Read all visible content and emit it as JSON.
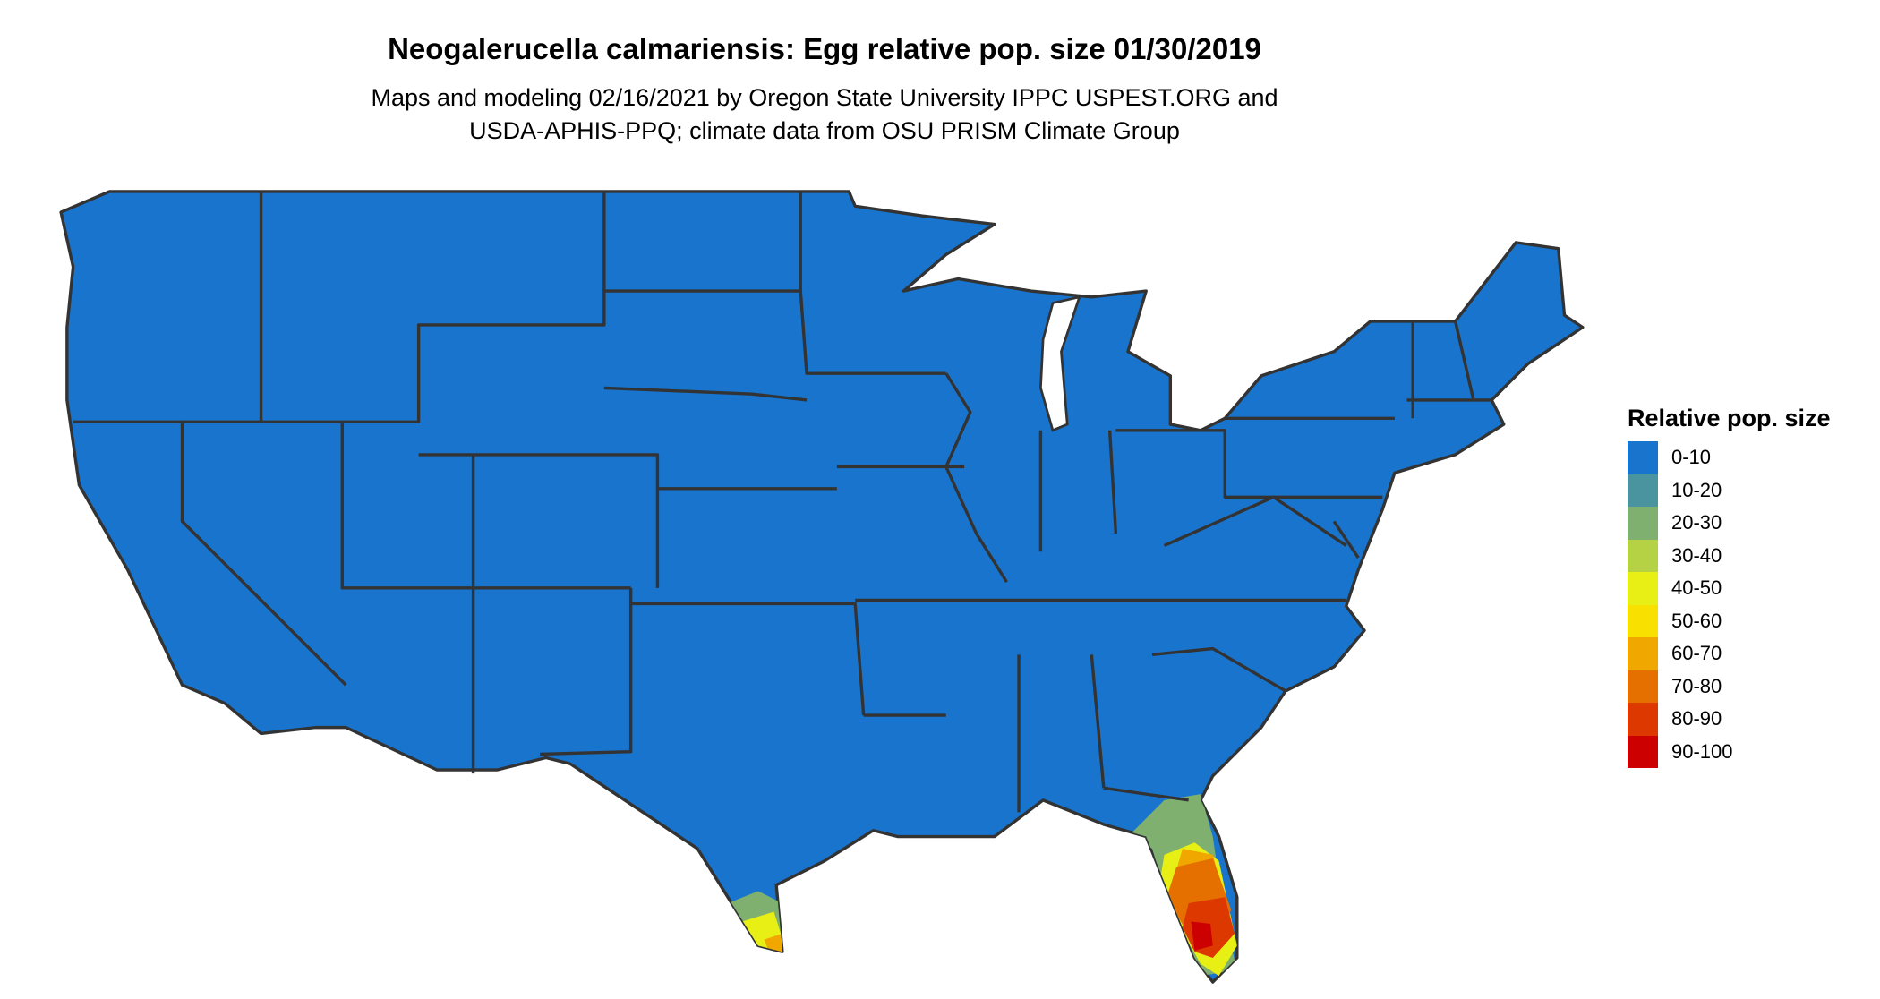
{
  "title": "Neogalerucella calmariensis: Egg relative pop. size 01/30/2019",
  "subtitle_lines": [
    "Maps and modeling 02/16/2021 by Oregon State University IPPC USPEST.ORG and",
    "USDA-APHIS-PPQ; climate data from OSU PRISM Climate Group"
  ],
  "chart_data": {
    "type": "heatmap",
    "subtype": "choropleth map of contiguous United States with state borders",
    "title": "Neogalerucella calmariensis: Egg relative pop. size 01/30/2019",
    "legend": {
      "title": "Relative pop. size",
      "placement": "right",
      "categories": [
        "0-10",
        "10-20",
        "20-30",
        "30-40",
        "40-50",
        "50-60",
        "60-70",
        "70-80",
        "80-90",
        "90-100"
      ],
      "colors": [
        "#1874cd",
        "#4a94a0",
        "#7fb06f",
        "#b4d244",
        "#e8ef14",
        "#f8e000",
        "#f0a800",
        "#e57000",
        "#dc3800",
        "#cc0000"
      ]
    },
    "dominant_category": "0-10",
    "hotspots": [
      {
        "region": "Florida peninsula",
        "range": "20-30 north to 90-100 south"
      },
      {
        "region": "South Texas tip",
        "range": "20-30 to 60-70"
      }
    ],
    "border_color": "#333333"
  }
}
